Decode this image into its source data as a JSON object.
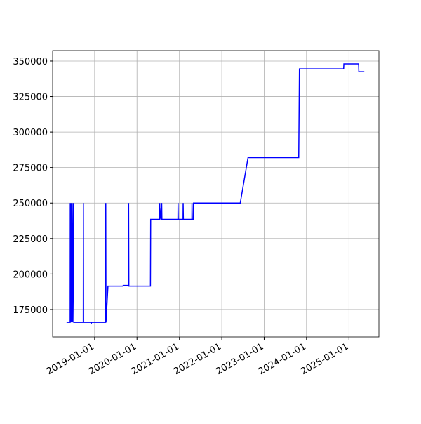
{
  "chart_data": {
    "type": "line",
    "x": [
      "2018-05-04",
      "2018-06-04",
      "2018-06-05",
      "2018-06-08",
      "2018-06-12",
      "2018-06-16",
      "2018-06-20",
      "2018-06-24",
      "2018-07-01",
      "2018-07-05",
      "2018-09-25",
      "2018-09-26",
      "2018-09-28",
      "2018-11-30",
      "2018-12-02",
      "2018-12-06",
      "2019-04-06",
      "2019-04-07",
      "2019-04-09",
      "2019-04-26",
      "2019-09-02",
      "2019-09-04",
      "2019-10-20",
      "2019-10-21",
      "2019-10-23",
      "2020-04-26",
      "2020-04-28",
      "2020-07-14",
      "2020-07-15",
      "2020-07-17",
      "2020-08-01",
      "2020-08-03",
      "2020-12-19",
      "2020-12-20",
      "2020-12-22",
      "2021-02-01",
      "2021-02-02",
      "2021-02-04",
      "2021-04-18",
      "2021-04-19",
      "2021-04-21",
      "2021-05-01",
      "2021-05-02",
      "2022-06-09",
      "2022-08-15",
      "2023-10-26",
      "2023-11-01",
      "2024-11-16",
      "2024-11-18",
      "2025-03-25",
      "2025-03-27",
      "2025-05-13"
    ],
    "series": [
      {
        "color": "#0000ff",
        "values": [
          166000,
          166000,
          250000,
          166000,
          250000,
          166000,
          250000,
          166000,
          250000,
          166000,
          166000,
          250000,
          166000,
          166000,
          165000,
          166000,
          166000,
          250000,
          166000,
          191500,
          191500,
          192000,
          192000,
          250000,
          191500,
          191500,
          238500,
          238500,
          250000,
          238500,
          250000,
          238500,
          238500,
          250000,
          238500,
          238500,
          250000,
          238500,
          238500,
          250000,
          238500,
          238500,
          250000,
          250000,
          282000,
          282000,
          344500,
          344500,
          348000,
          348000,
          342500,
          342500
        ]
      }
    ],
    "xlim": [
      "2018-01-04",
      "2025-09-16"
    ],
    "xticks": [
      "2019-01-01",
      "2020-01-01",
      "2021-01-01",
      "2022-01-01",
      "2023-01-01",
      "2024-01-01",
      "2025-01-01"
    ],
    "ylim": [
      155700,
      357400
    ],
    "yticks": [
      175000,
      200000,
      225000,
      250000,
      275000,
      300000,
      325000,
      350000
    ],
    "grid": true
  }
}
